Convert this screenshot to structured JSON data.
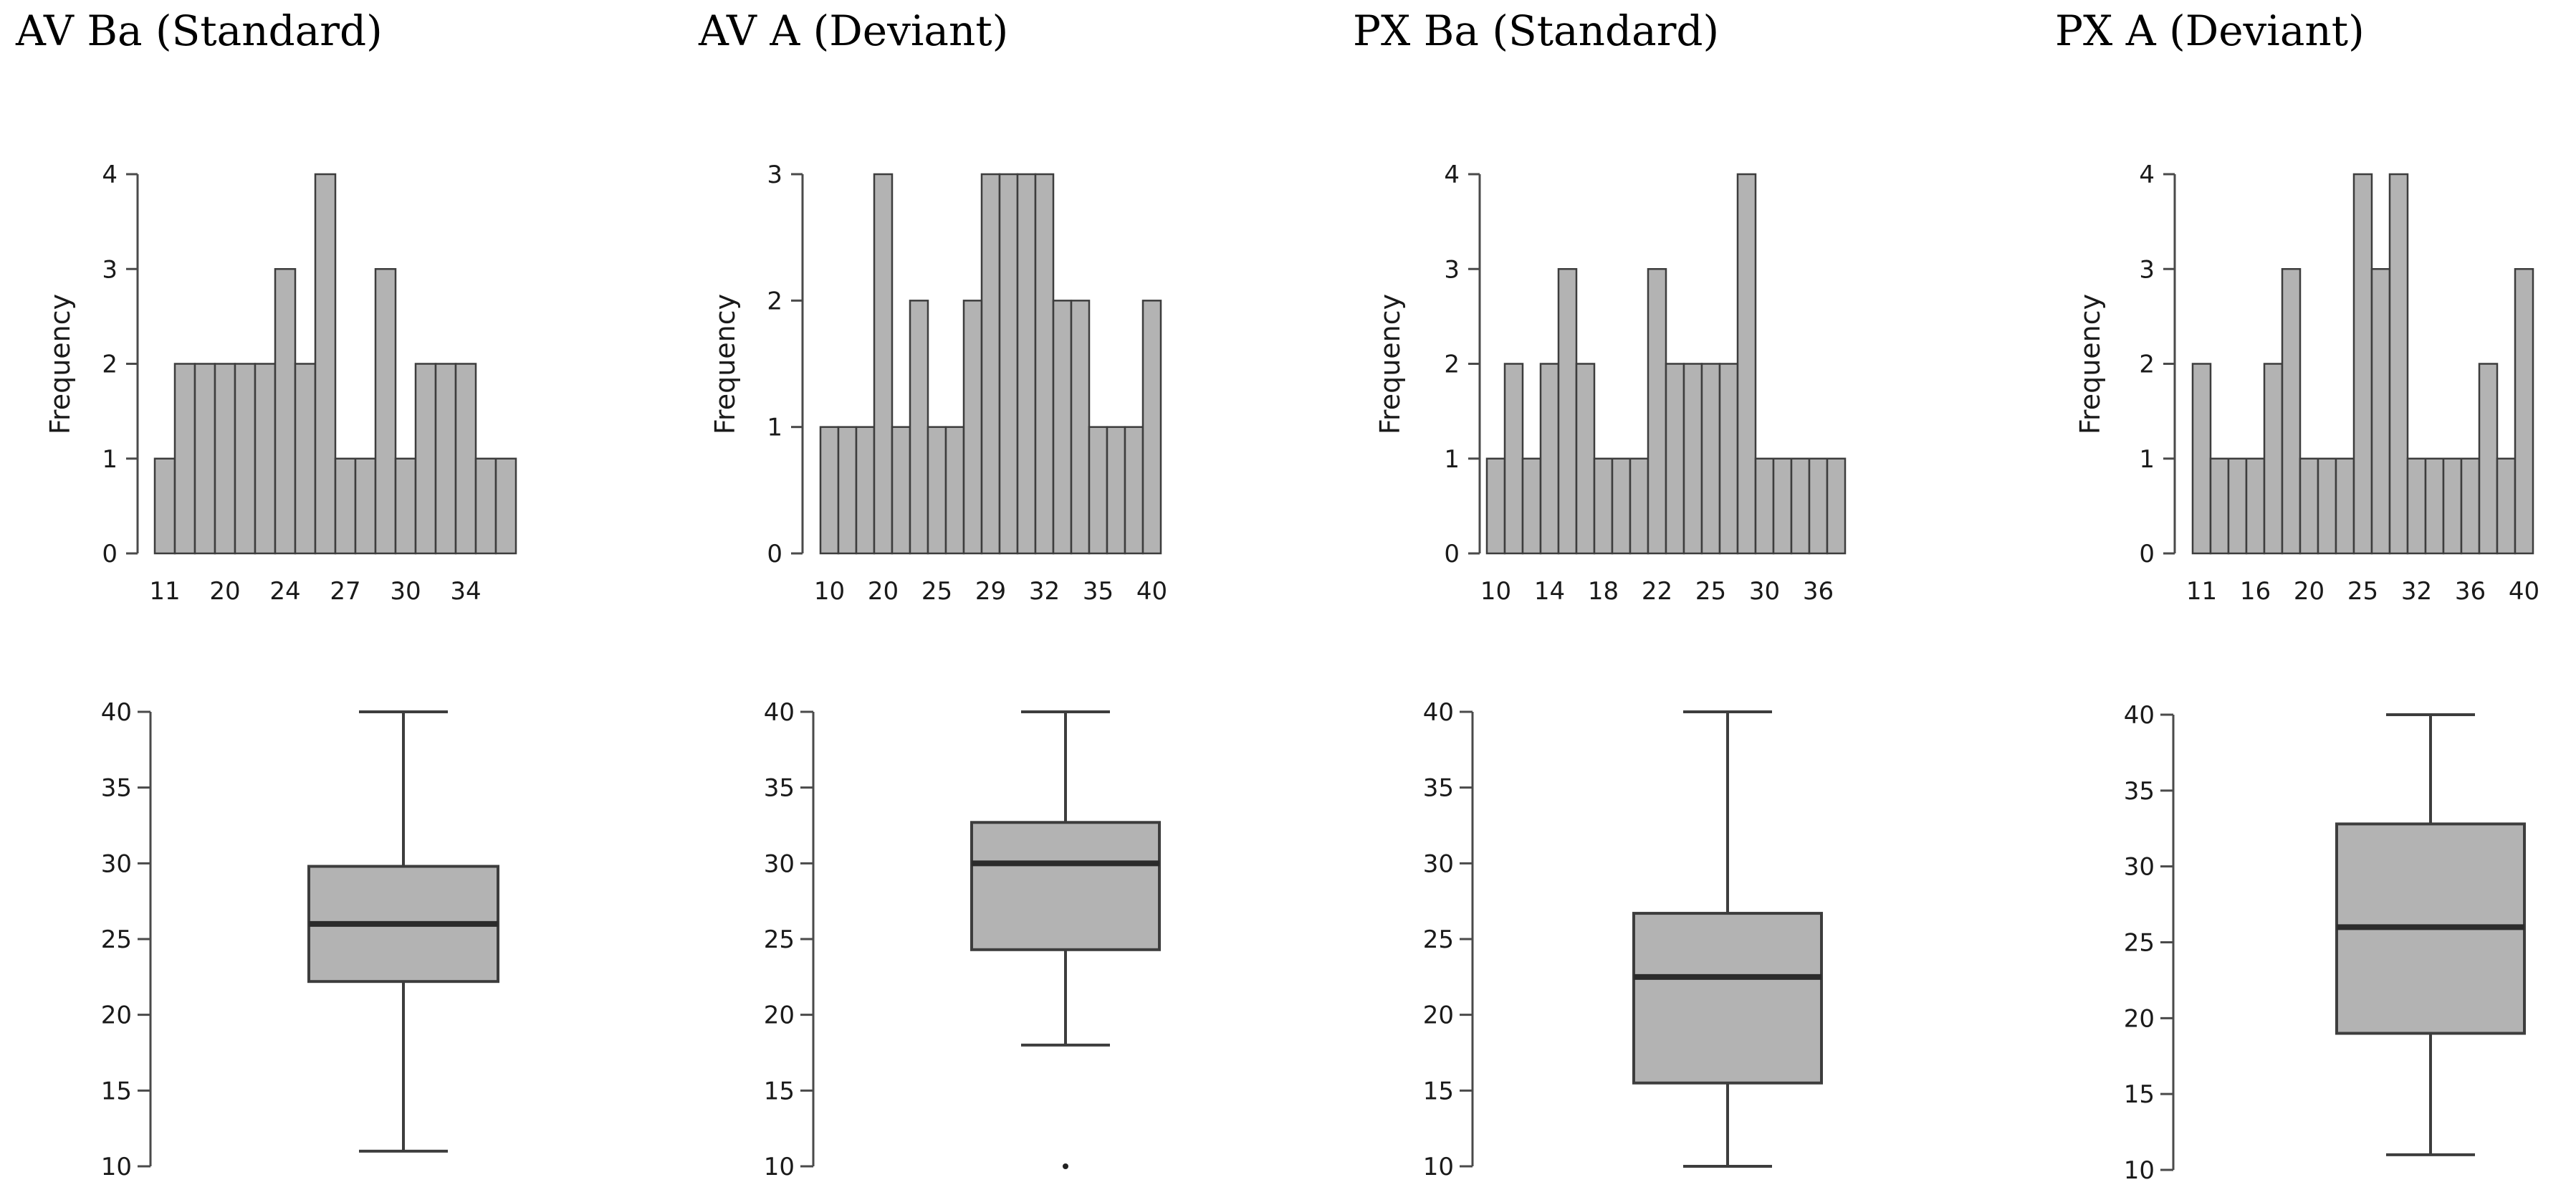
{
  "chart_data": [
    {
      "type": "bar",
      "title": "AV Ba (Standard)",
      "ylabel": "Frequency",
      "xlabel": "",
      "values": [
        1,
        2,
        2,
        2,
        2,
        2,
        3,
        2,
        4,
        1,
        1,
        3,
        1,
        2,
        2,
        2,
        1,
        1
      ],
      "ylim": [
        0,
        4
      ],
      "yticks": [
        "0",
        "1",
        "2",
        "3",
        "4"
      ],
      "xtick_labels": [
        {
          "label": "11",
          "at": 0.5
        },
        {
          "label": "20",
          "at": 3.5
        },
        {
          "label": "24",
          "at": 6.5
        },
        {
          "label": "27",
          "at": 9.5
        },
        {
          "label": "30",
          "at": 12.5
        },
        {
          "label": "34",
          "at": 15.5
        }
      ],
      "boxplot": {
        "min": 11,
        "q1": 22.2,
        "median": 26,
        "q3": 29.8,
        "max": 40,
        "outliers": [],
        "ylim": [
          10,
          40
        ],
        "yticks": [
          "10",
          "15",
          "20",
          "25",
          "30",
          "35",
          "40"
        ]
      }
    },
    {
      "type": "bar",
      "title": "AV A (Deviant)",
      "ylabel": "Frequency",
      "xlabel": "",
      "values": [
        1,
        1,
        1,
        3,
        1,
        2,
        1,
        1,
        2,
        3,
        3,
        3,
        3,
        2,
        2,
        1,
        1,
        1,
        2
      ],
      "ylim": [
        0,
        3
      ],
      "yticks": [
        "0",
        "1",
        "2",
        "3"
      ],
      "xtick_labels": [
        {
          "label": "10",
          "at": 0.5
        },
        {
          "label": "20",
          "at": 3.5
        },
        {
          "label": "25",
          "at": 6.5
        },
        {
          "label": "29",
          "at": 9.5
        },
        {
          "label": "32",
          "at": 12.5
        },
        {
          "label": "35",
          "at": 15.5
        },
        {
          "label": "40",
          "at": 18.5
        }
      ],
      "boxplot": {
        "min": 18,
        "q1": 24.3,
        "median": 30,
        "q3": 32.7,
        "max": 40,
        "outliers": [
          10
        ],
        "ylim": [
          10,
          40
        ],
        "yticks": [
          "10",
          "15",
          "20",
          "25",
          "30",
          "35",
          "40"
        ]
      }
    },
    {
      "type": "bar",
      "title": "PX Ba (Standard)",
      "ylabel": "Frequency",
      "xlabel": "",
      "values": [
        1,
        2,
        1,
        2,
        3,
        2,
        1,
        1,
        1,
        3,
        2,
        2,
        2,
        2,
        4,
        1,
        1,
        1,
        1,
        1
      ],
      "ylim": [
        0,
        4
      ],
      "yticks": [
        "0",
        "1",
        "2",
        "3",
        "4"
      ],
      "xtick_labels": [
        {
          "label": "10",
          "at": 0.5
        },
        {
          "label": "14",
          "at": 3.5
        },
        {
          "label": "18",
          "at": 6.5
        },
        {
          "label": "22",
          "at": 9.5
        },
        {
          "label": "25",
          "at": 12.5
        },
        {
          "label": "30",
          "at": 15.5
        },
        {
          "label": "36",
          "at": 18.5
        }
      ],
      "boxplot": {
        "min": 10,
        "q1": 15.5,
        "median": 22.5,
        "q3": 26.7,
        "max": 40,
        "outliers": [],
        "ylim": [
          10,
          40
        ],
        "yticks": [
          "10",
          "15",
          "20",
          "25",
          "30",
          "35",
          "40"
        ]
      }
    },
    {
      "type": "bar",
      "title": "PX A (Deviant)",
      "ylabel": "Frequency",
      "xlabel": "",
      "values": [
        2,
        1,
        1,
        1,
        2,
        3,
        1,
        1,
        1,
        4,
        3,
        4,
        1,
        1,
        1,
        1,
        2,
        1,
        3
      ],
      "ylim": [
        0,
        4
      ],
      "yticks": [
        "0",
        "1",
        "2",
        "3",
        "4"
      ],
      "xtick_labels": [
        {
          "label": "11",
          "at": 0.5
        },
        {
          "label": "16",
          "at": 3.5
        },
        {
          "label": "20",
          "at": 6.5
        },
        {
          "label": "25",
          "at": 9.5
        },
        {
          "label": "32",
          "at": 12.5
        },
        {
          "label": "36",
          "at": 15.5
        },
        {
          "label": "40",
          "at": 18.5
        }
      ],
      "boxplot": {
        "min": 11,
        "q1": 19,
        "median": 26,
        "q3": 32.8,
        "max": 40,
        "outliers": [],
        "ylim": [
          10,
          40
        ],
        "yticks": [
          "10",
          "15",
          "20",
          "25",
          "30",
          "35",
          "40"
        ]
      }
    }
  ]
}
